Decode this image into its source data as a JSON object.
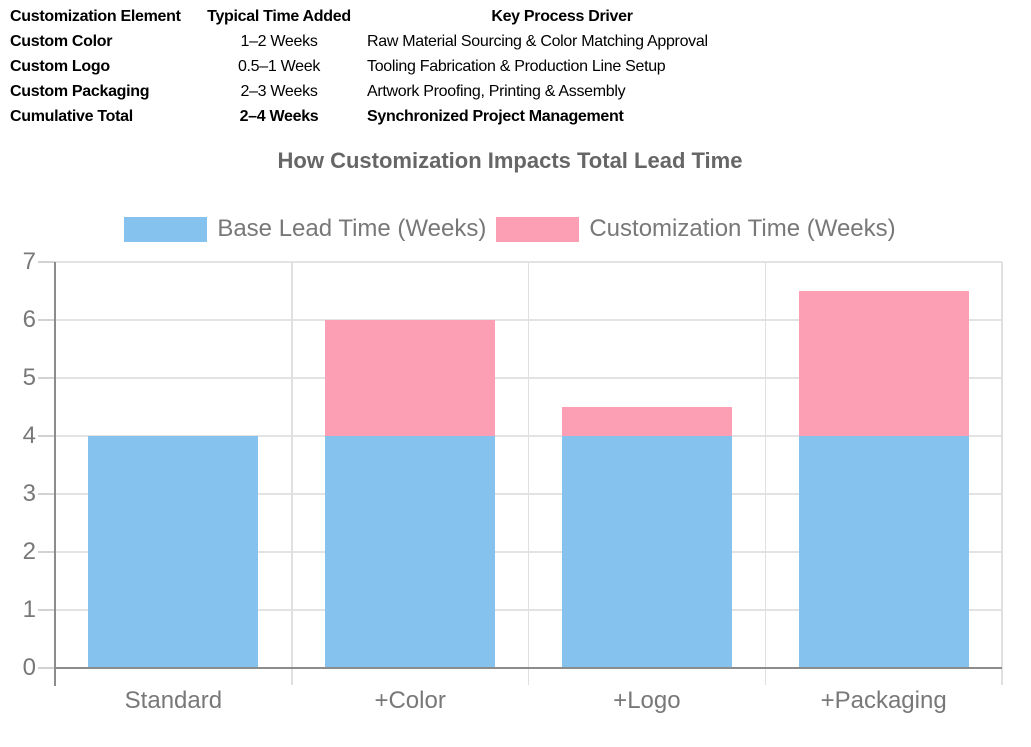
{
  "table": {
    "headers": {
      "element": "Customization Element",
      "time": "Typical Time Added",
      "driver": "Key Process Driver"
    },
    "rows": [
      {
        "element": "Custom Color",
        "time": "1–2 Weeks",
        "driver": "Raw Material Sourcing & Color Matching Approval"
      },
      {
        "element": "Custom Logo",
        "time": "0.5–1 Week",
        "driver": "Tooling Fabrication & Production Line Setup"
      },
      {
        "element": "Custom Packaging",
        "time": "2–3 Weeks",
        "driver": "Artwork Proofing, Printing & Assembly"
      },
      {
        "element": "Cumulative Total",
        "time": "2–4 Weeks",
        "driver": "Synchronized Project Management"
      }
    ]
  },
  "chart_data": {
    "type": "bar",
    "stacked": true,
    "title": "How Customization Impacts Total Lead Time",
    "categories": [
      "Standard",
      "+Color",
      "+Logo",
      "+Packaging"
    ],
    "series": [
      {
        "name": "Base Lead Time (Weeks)",
        "color": "#85C3EE",
        "values": [
          4,
          4,
          4,
          4
        ]
      },
      {
        "name": "Customization Time (Weeks)",
        "color": "#FD9FB4",
        "values": [
          0,
          2,
          0.5,
          2.5
        ]
      }
    ],
    "xlabel": "",
    "ylabel": "",
    "ylim": [
      0,
      7
    ],
    "yticks": [
      0,
      1,
      2,
      3,
      4,
      5,
      6,
      7
    ],
    "grid": true,
    "legend_position": "top"
  },
  "colors": {
    "base_series": "#85C3EE",
    "customization_series": "#FD9FB4",
    "axis_line": "#8c8c8c",
    "grid_line": "#e3e3e3",
    "label_text": "#787878",
    "title_text": "#666666",
    "table_text": "#000000"
  }
}
